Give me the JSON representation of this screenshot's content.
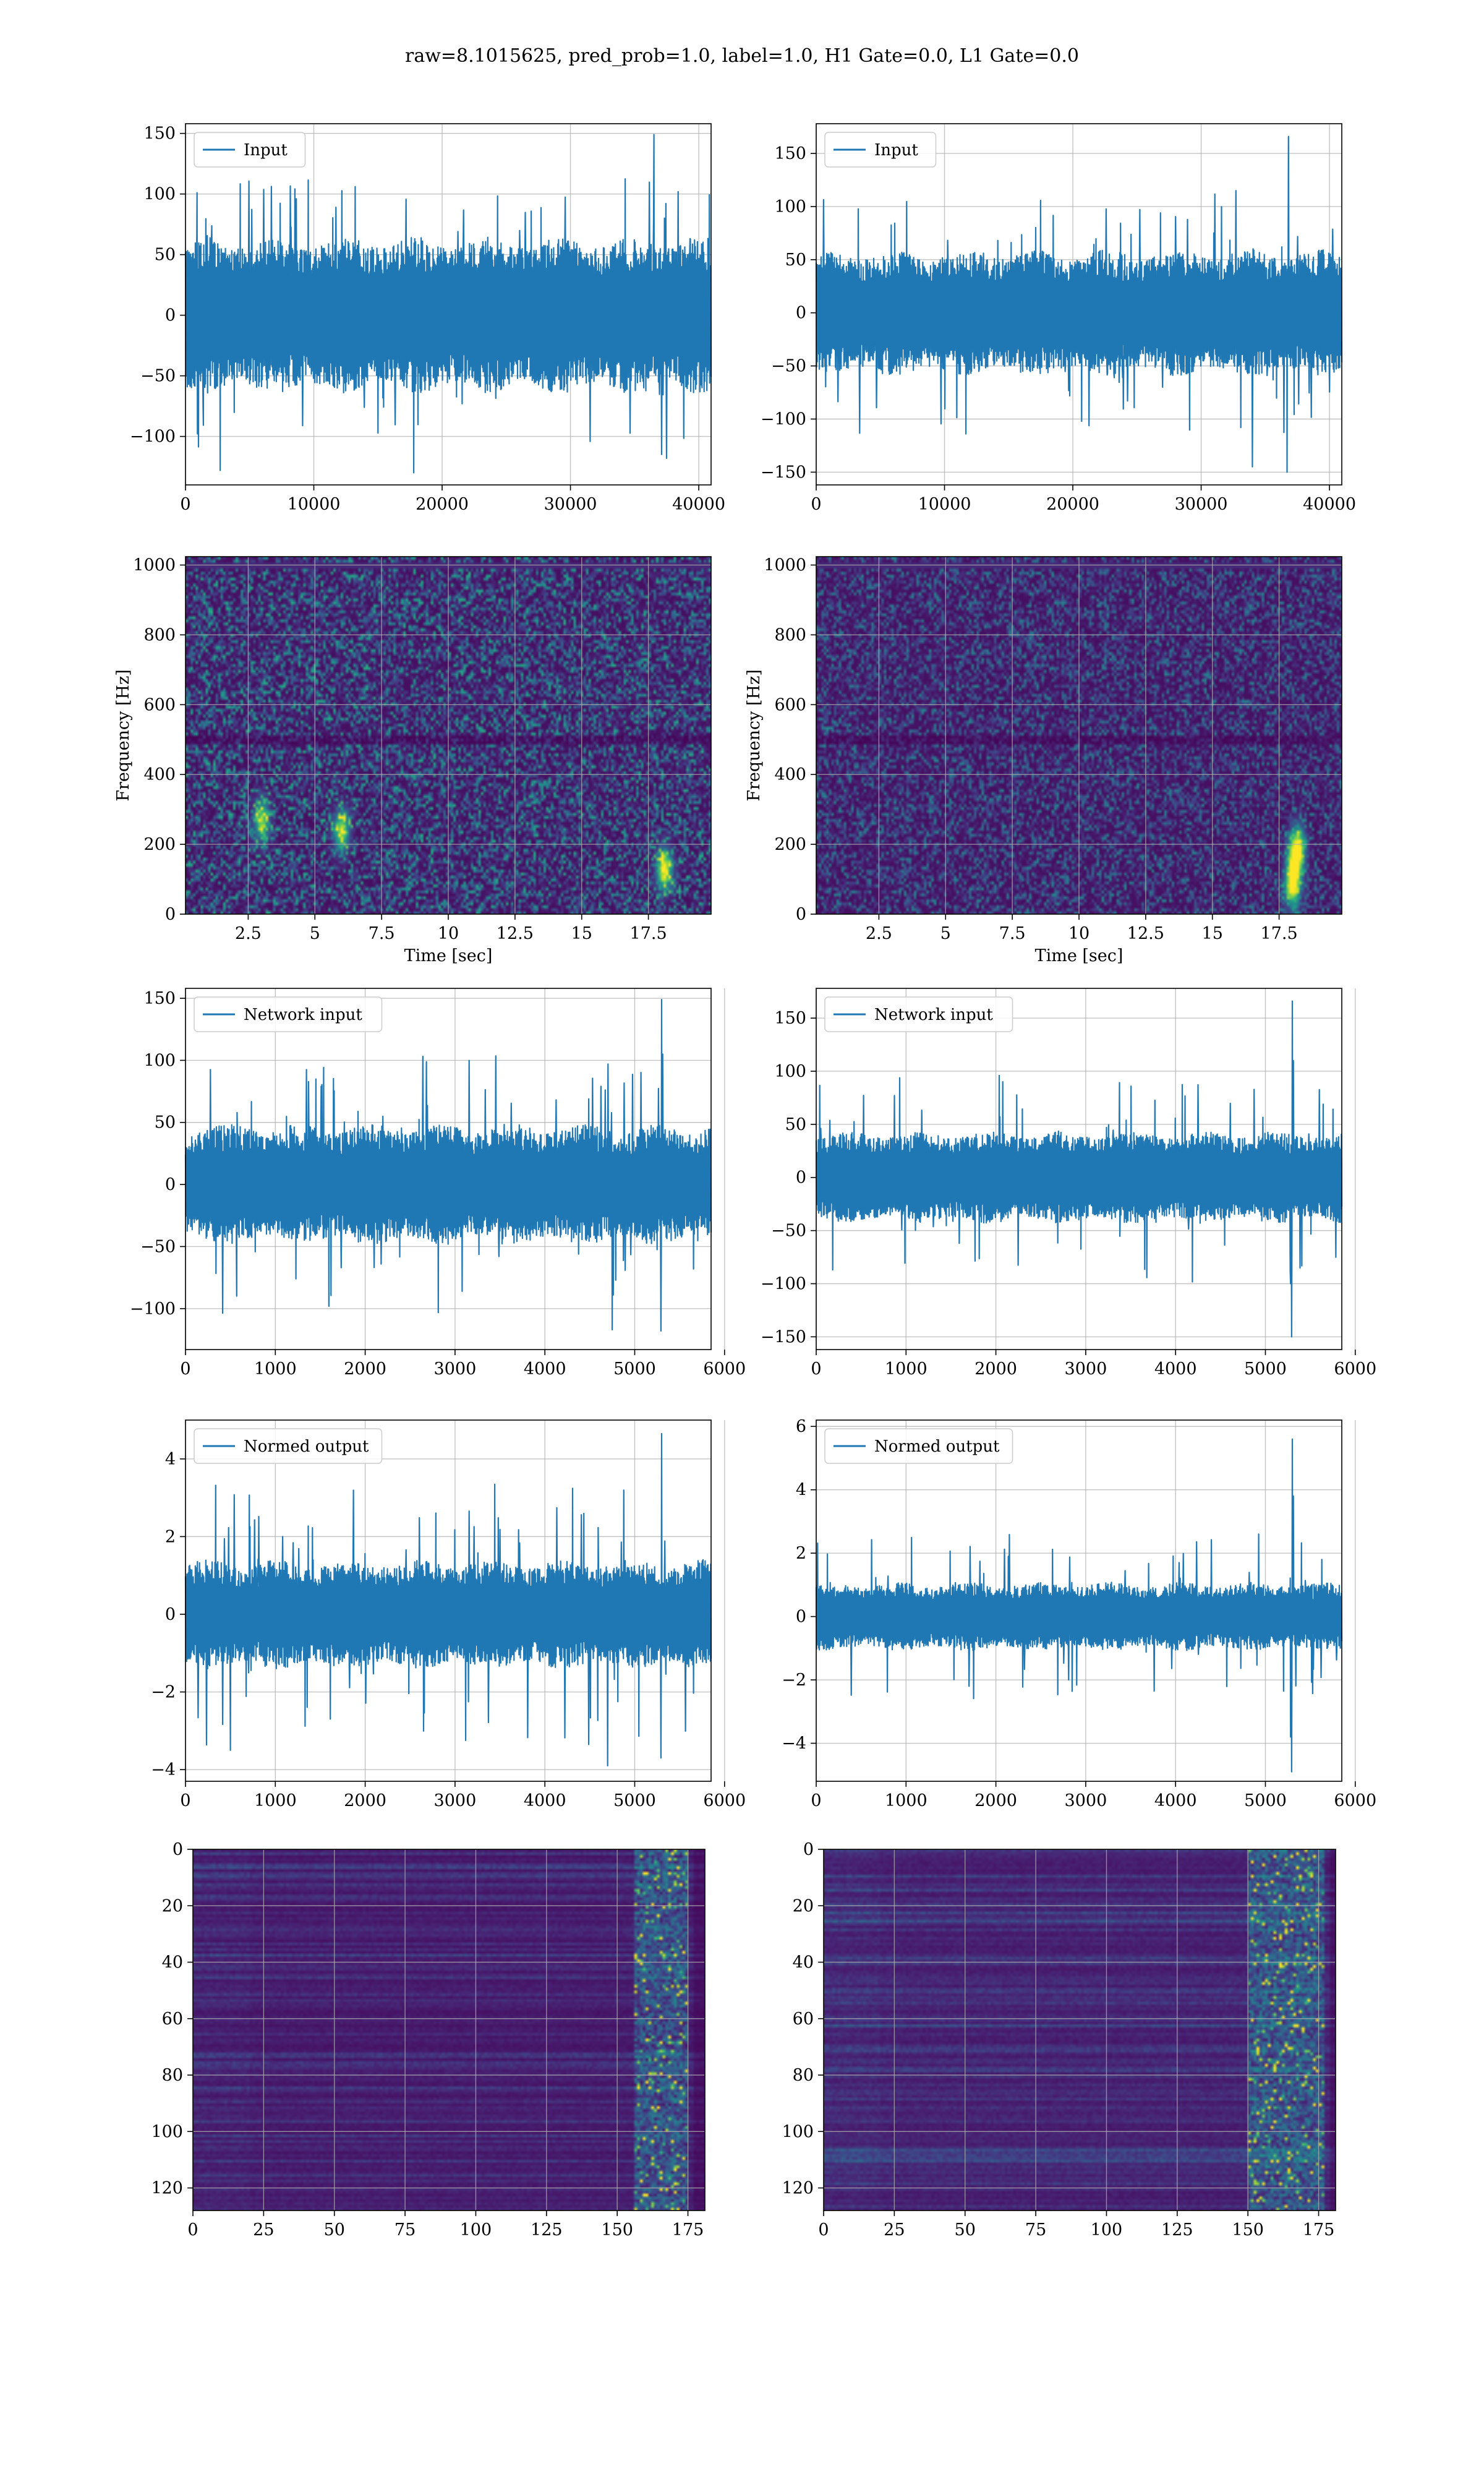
{
  "figure": {
    "title": "raw=8.1015625, pred_prob=1.0, label=1.0, H1 Gate=0.0, L1 Gate=0.0"
  },
  "colors": {
    "line": "#1f77b4",
    "grid": "#b0b0b0",
    "viridis_low": "#440154",
    "viridis_mid": "#21918c",
    "viridis_high": "#fde725"
  },
  "chart_data": [
    {
      "type": "line",
      "id": "row1-left",
      "legend": "Input",
      "legend_position": "top-left",
      "x_range": [
        0,
        40960
      ],
      "ylim": [
        -140,
        158
      ],
      "grid": true,
      "xticks": [
        0,
        10000,
        20000,
        30000,
        40000
      ],
      "yticks": [
        -100,
        -50,
        0,
        50,
        100,
        150
      ],
      "envelope": {
        "typical": 60,
        "peak": 115
      },
      "spikes": [
        {
          "x": 36500,
          "y": 149
        },
        {
          "x": 17800,
          "y": -130
        },
        {
          "x": 2700,
          "y": -128
        },
        {
          "x": 37500,
          "y": -118
        }
      ]
    },
    {
      "type": "line",
      "id": "row1-right",
      "legend": "Input",
      "legend_position": "top-left",
      "x_range": [
        0,
        40960
      ],
      "ylim": [
        -162,
        178
      ],
      "grid": true,
      "xticks": [
        0,
        10000,
        20000,
        30000,
        40000
      ],
      "yticks": [
        -150,
        -100,
        -50,
        0,
        50,
        100,
        150
      ],
      "envelope": {
        "typical": 55,
        "peak": 115
      },
      "spikes": [
        {
          "x": 36800,
          "y": 166
        },
        {
          "x": 36700,
          "y": -150
        },
        {
          "x": 34000,
          "y": -145
        },
        {
          "x": 32700,
          "y": 115
        }
      ]
    },
    {
      "type": "heatmap",
      "id": "row2-left",
      "colormap": "viridis",
      "xlabel": "Time [sec]",
      "ylabel": "Frequency [Hz]",
      "xlim": [
        0.15,
        19.85
      ],
      "ylim": [
        0,
        1024
      ],
      "grid": true,
      "xticks": [
        2.5,
        5.0,
        7.5,
        10.0,
        12.5,
        15.0,
        17.5
      ],
      "yticks": [
        0,
        200,
        400,
        600,
        800,
        1000
      ],
      "noise_intensity": 0.36,
      "band_hz": 500,
      "hotspots": [
        {
          "x": 18.1,
          "y": 130,
          "v": 0.95
        },
        {
          "x": 6.0,
          "y": 240,
          "v": 0.8
        },
        {
          "x": 3.0,
          "y": 270,
          "v": 0.75
        }
      ]
    },
    {
      "type": "heatmap",
      "id": "row2-right",
      "colormap": "viridis",
      "xlabel": "Time [sec]",
      "ylabel": "Frequency [Hz]",
      "xlim": [
        0.15,
        19.85
      ],
      "ylim": [
        0,
        1024
      ],
      "grid": true,
      "xticks": [
        2.5,
        5.0,
        7.5,
        10.0,
        12.5,
        15.0,
        17.5
      ],
      "yticks": [
        0,
        200,
        400,
        600,
        800,
        1000
      ],
      "noise_intensity": 0.26,
      "band_hz": 500,
      "hotspots": [
        {
          "x": 18.0,
          "y": 80,
          "v": 0.95
        },
        {
          "x": 18.1,
          "y": 150,
          "v": 0.85
        },
        {
          "x": 18.2,
          "y": 200,
          "v": 0.7
        }
      ]
    },
    {
      "type": "line",
      "id": "row3-left",
      "legend": "Network input",
      "legend_position": "top-left",
      "x_range": [
        0,
        5850
      ],
      "ylim": [
        -133,
        158
      ],
      "grid": true,
      "xticks": [
        0,
        1000,
        2000,
        3000,
        4000,
        5000,
        6000
      ],
      "yticks": [
        -100,
        -50,
        0,
        50,
        100,
        150
      ],
      "envelope": {
        "typical": 45,
        "peak": 105
      },
      "spikes": [
        {
          "x": 5300,
          "y": 149
        },
        {
          "x": 5290,
          "y": -118
        },
        {
          "x": 4750,
          "y": -117
        },
        {
          "x": 5310,
          "y": 105
        }
      ]
    },
    {
      "type": "line",
      "id": "row3-right",
      "legend": "Network input",
      "legend_position": "top-left",
      "x_range": [
        0,
        5850
      ],
      "ylim": [
        -162,
        178
      ],
      "grid": true,
      "xticks": [
        0,
        1000,
        2000,
        3000,
        4000,
        5000,
        6000
      ],
      "yticks": [
        -150,
        -100,
        -50,
        0,
        50,
        100,
        150
      ],
      "envelope": {
        "typical": 40,
        "peak": 100
      },
      "spikes": [
        {
          "x": 5300,
          "y": 166
        },
        {
          "x": 5290,
          "y": -150
        },
        {
          "x": 5310,
          "y": 110
        },
        {
          "x": 5280,
          "y": -100
        }
      ]
    },
    {
      "type": "line",
      "id": "row4-left",
      "legend": "Normed output",
      "legend_position": "top-left",
      "x_range": [
        0,
        5850
      ],
      "ylim": [
        -4.3,
        5.0
      ],
      "grid": true,
      "xticks": [
        0,
        1000,
        2000,
        3000,
        4000,
        5000,
        6000
      ],
      "yticks": [
        -4,
        -2,
        0,
        2,
        4
      ],
      "envelope": {
        "typical": 1.3,
        "peak": 3.4
      },
      "spikes": [
        {
          "x": 5300,
          "y": 4.65
        },
        {
          "x": 4700,
          "y": -3.9
        },
        {
          "x": 5290,
          "y": -3.7
        },
        {
          "x": 500,
          "y": -3.5
        }
      ]
    },
    {
      "type": "line",
      "id": "row4-right",
      "legend": "Normed output",
      "legend_position": "top-left",
      "x_range": [
        0,
        5850
      ],
      "ylim": [
        -5.2,
        6.2
      ],
      "grid": true,
      "xticks": [
        0,
        1000,
        2000,
        3000,
        4000,
        5000,
        6000
      ],
      "yticks": [
        -4,
        -2,
        0,
        2,
        4,
        6
      ],
      "envelope": {
        "typical": 1.0,
        "peak": 2.6
      },
      "spikes": [
        {
          "x": 5300,
          "y": 5.6
        },
        {
          "x": 5290,
          "y": -4.9
        },
        {
          "x": 5310,
          "y": 3.8
        },
        {
          "x": 5280,
          "y": -3.8
        }
      ]
    },
    {
      "type": "heatmap",
      "id": "row5-left",
      "colormap": "viridis",
      "xlim": [
        0,
        181
      ],
      "ylim": [
        128,
        0
      ],
      "grid": true,
      "xticks": [
        0,
        25,
        50,
        75,
        100,
        125,
        150,
        175
      ],
      "yticks": [
        0,
        20,
        40,
        60,
        80,
        100,
        120
      ],
      "active_band": [
        156,
        174
      ],
      "background": 0.13
    },
    {
      "type": "heatmap",
      "id": "row5-right",
      "colormap": "viridis",
      "xlim": [
        0,
        181
      ],
      "ylim": [
        128,
        0
      ],
      "grid": true,
      "xticks": [
        0,
        25,
        50,
        75,
        100,
        125,
        150,
        175
      ],
      "yticks": [
        0,
        20,
        40,
        60,
        80,
        100,
        120
      ],
      "active_band": [
        150,
        176
      ],
      "background": 0.17
    }
  ]
}
